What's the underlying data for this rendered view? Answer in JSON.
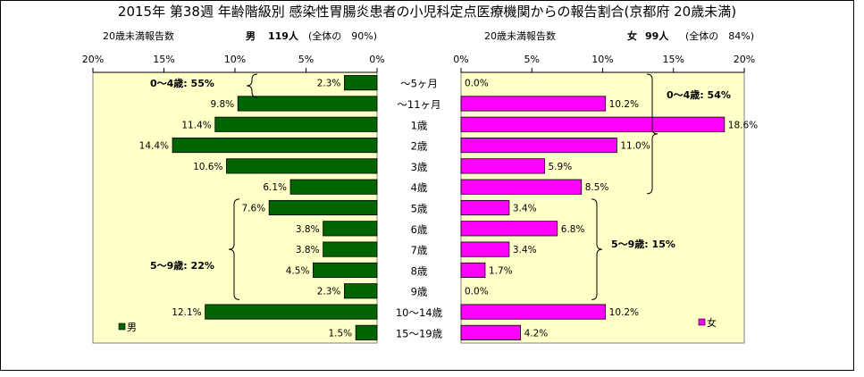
{
  "title": "2015年 第38週 年齢階級別 感染性胃腸炎患者の小児科定点医療機関からの報告割合(京都府 20歳未満)",
  "left_header": {
    "sub": "20歳未満報告数",
    "sex": "男",
    "count": "119人",
    "ratio": "(全体の　90%)"
  },
  "right_header": {
    "sub": "20歳未満報告数",
    "sex": "女",
    "count": "99人",
    "ratio": "(全体の　84%)"
  },
  "left_group_labels": [
    "0～4歳: 55%",
    "5～9歳: 22%"
  ],
  "right_group_labels": [
    "0～4歳: 54%",
    "5～9歳: 15%"
  ],
  "colors": {
    "male": "#006400",
    "female": "#ff00ff",
    "plot_bg": "#ffffc8"
  },
  "chart_data": [
    {
      "type": "bar",
      "orientation": "horizontal",
      "direction": "right-to-left",
      "categories": [
        "～5ヶ月",
        "～11ヶ月",
        "1歳",
        "2歳",
        "3歳",
        "4歳",
        "5歳",
        "6歳",
        "7歳",
        "8歳",
        "9歳",
        "10～14歳",
        "15～19歳"
      ],
      "series": [
        {
          "name": "男",
          "values": [
            2.3,
            9.8,
            11.4,
            14.4,
            10.6,
            6.1,
            7.6,
            3.8,
            3.8,
            4.5,
            2.3,
            12.1,
            1.5
          ],
          "labels": [
            "2.3%",
            "9.8%",
            "11.4%",
            "14.4%",
            "10.6%",
            "6.1%",
            "7.6%",
            "3.8%",
            "3.8%",
            "4.5%",
            "2.3%",
            "12.1%",
            "1.5%"
          ]
        }
      ],
      "xlim": [
        0,
        20
      ],
      "xticks": [
        "20%",
        "15%",
        "10%",
        "5%",
        "0%"
      ],
      "legend": "bottom-left"
    },
    {
      "type": "bar",
      "orientation": "horizontal",
      "direction": "left-to-right",
      "categories": [
        "～5ヶ月",
        "～11ヶ月",
        "1歳",
        "2歳",
        "3歳",
        "4歳",
        "5歳",
        "6歳",
        "7歳",
        "8歳",
        "9歳",
        "10～14歳",
        "15～19歳"
      ],
      "series": [
        {
          "name": "女",
          "values": [
            0.0,
            10.2,
            18.6,
            11.0,
            5.9,
            8.5,
            3.4,
            6.8,
            3.4,
            1.7,
            0.0,
            10.2,
            4.2
          ],
          "labels": [
            "0.0%",
            "10.2%",
            "18.6%",
            "11.0%",
            "5.9%",
            "8.5%",
            "3.4%",
            "6.8%",
            "3.4%",
            "1.7%",
            "0.0%",
            "10.2%",
            "4.2%"
          ]
        }
      ],
      "xlim": [
        0,
        20
      ],
      "xticks": [
        "0%",
        "5%",
        "10%",
        "15%",
        "20%"
      ],
      "legend": "bottom-right"
    }
  ]
}
